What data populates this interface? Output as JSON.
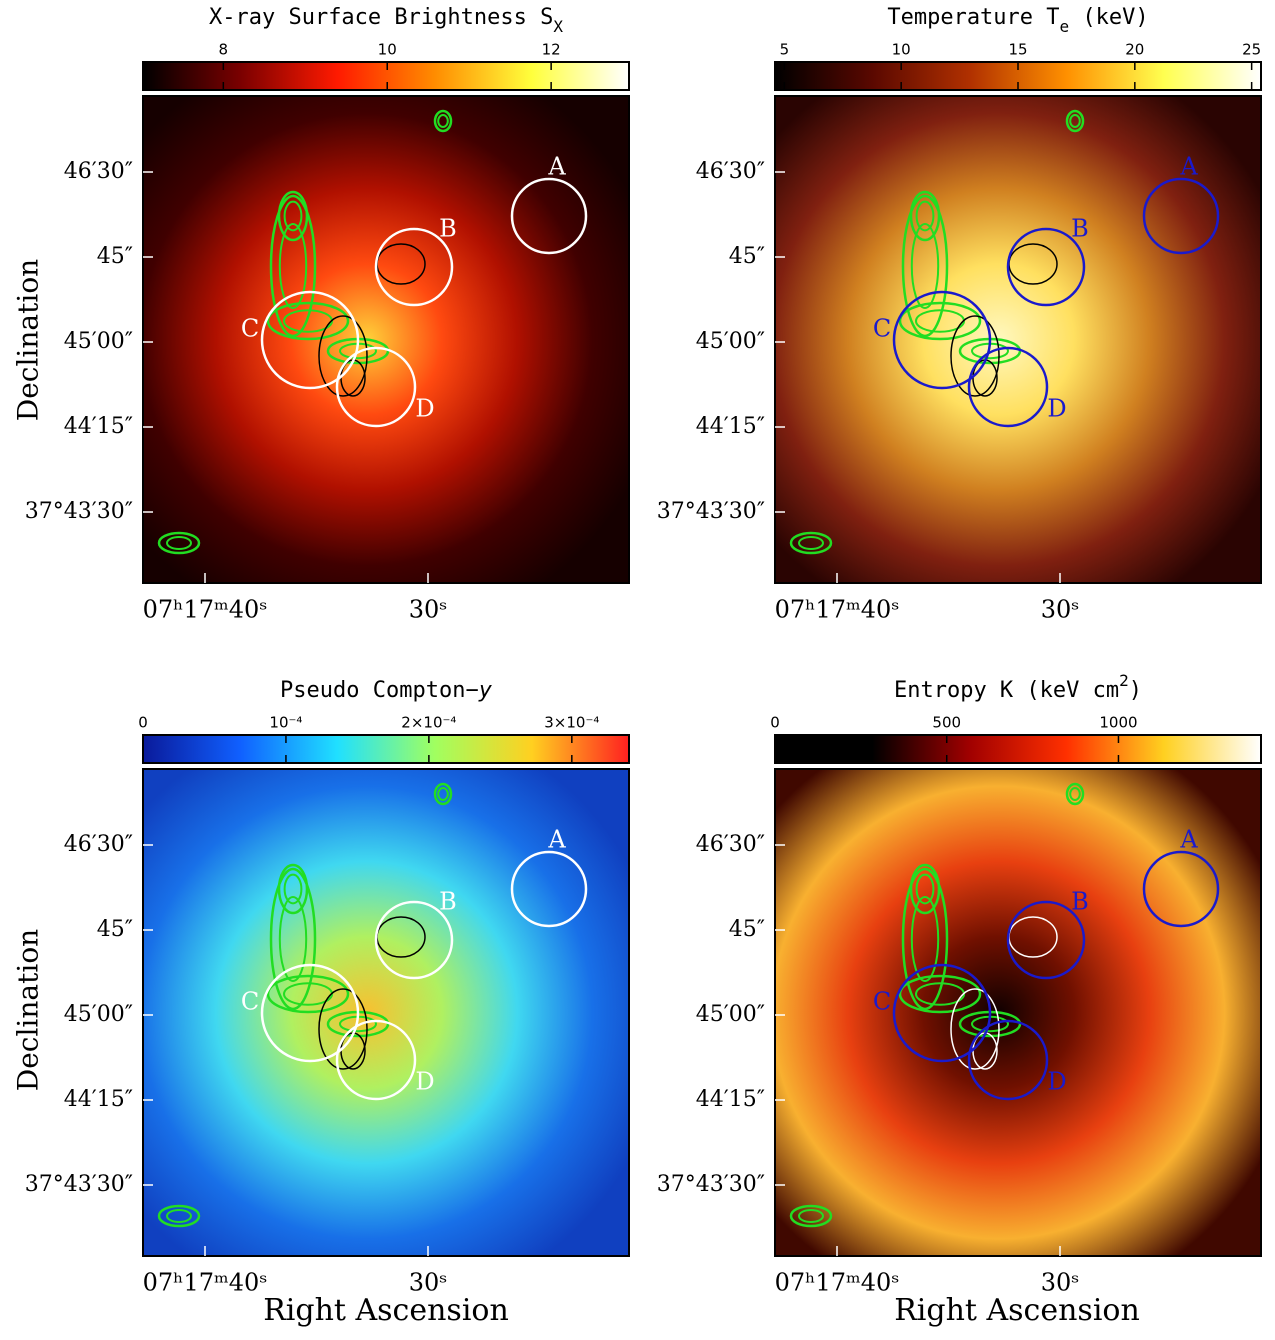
{
  "panels": [
    {
      "title": [
        "X-ray Surface Brightness S",
        "X"
      ],
      "title_format": [
        "normal",
        "sub"
      ],
      "colorbar": {
        "lim": [
          7.02,
          12.95
        ],
        "ticks": [
          8,
          10,
          12
        ],
        "colors": [
          "#000000",
          "#7a0000",
          "#ff1a00",
          "#ff8c00",
          "#ffff3c",
          "#ffffff"
        ]
      },
      "region_color": "#ffffff",
      "map_colors": [
        "#ffd23a",
        "#ff4a10",
        "#b01000",
        "#400000",
        "#160000"
      ]
    },
    {
      "title": [
        "Temperature T",
        "e",
        " (keV)"
      ],
      "title_format": [
        "normal",
        "sub",
        "normal"
      ],
      "colorbar": {
        "lim": [
          4.6,
          25.4
        ],
        "ticks": [
          5,
          10,
          15,
          20,
          25
        ],
        "colors": [
          "#000000",
          "#5a0800",
          "#b03000",
          "#ff9000",
          "#ffff50",
          "#ffffff"
        ]
      },
      "region_color": "#1a1acc",
      "map_colors": [
        "#fff8c0",
        "#ffe060",
        "#d08020",
        "#802010",
        "#2a0402"
      ]
    },
    {
      "title": [
        "Pseudo Compton−",
        "y"
      ],
      "title_format": [
        "normal",
        "italic"
      ],
      "colorbar": {
        "lim": [
          0,
          0.00034
        ],
        "ticks": [
          0,
          {
            "value": 0.0001,
            "label": "10⁻⁴"
          },
          {
            "value": 0.0002,
            "label": "2×10⁻⁴"
          },
          {
            "value": 0.0003,
            "label": "3×10⁻⁴"
          }
        ],
        "colors": [
          "#0a1a9a",
          "#1060ff",
          "#20e0ff",
          "#a0ff60",
          "#ffd020",
          "#ff2020"
        ]
      },
      "region_color": "#ffffff",
      "map_colors": [
        "#f8c030",
        "#b0f060",
        "#40d8f0",
        "#1870e8",
        "#1040c0"
      ]
    },
    {
      "title": [
        "Entropy K (keV cm",
        "2",
        ")"
      ],
      "title_format": [
        "normal",
        "sup",
        "normal"
      ],
      "colorbar": {
        "lim": [
          0,
          1415
        ],
        "ticks": [
          0,
          500,
          1000
        ],
        "colors": [
          "#000000",
          "#000000",
          "#a00000",
          "#ff3000",
          "#ffd020",
          "#ffffff"
        ]
      },
      "region_color": "#1a1acc",
      "map_colors": [
        "#100000",
        "#701000",
        "#e84010",
        "#f8b030",
        "#400800"
      ]
    }
  ],
  "regions": [
    "A",
    "B",
    "C",
    "D"
  ],
  "ra_ticks": [
    "07ʰ17ᵐ40ˢ",
    "30ˢ"
  ],
  "dec_ticks": [
    "46′30″",
    "45″",
    "45′00″",
    "44′15″",
    "37°43′30″"
  ],
  "y_label": "Declination",
  "x_label": "Right Ascension"
}
